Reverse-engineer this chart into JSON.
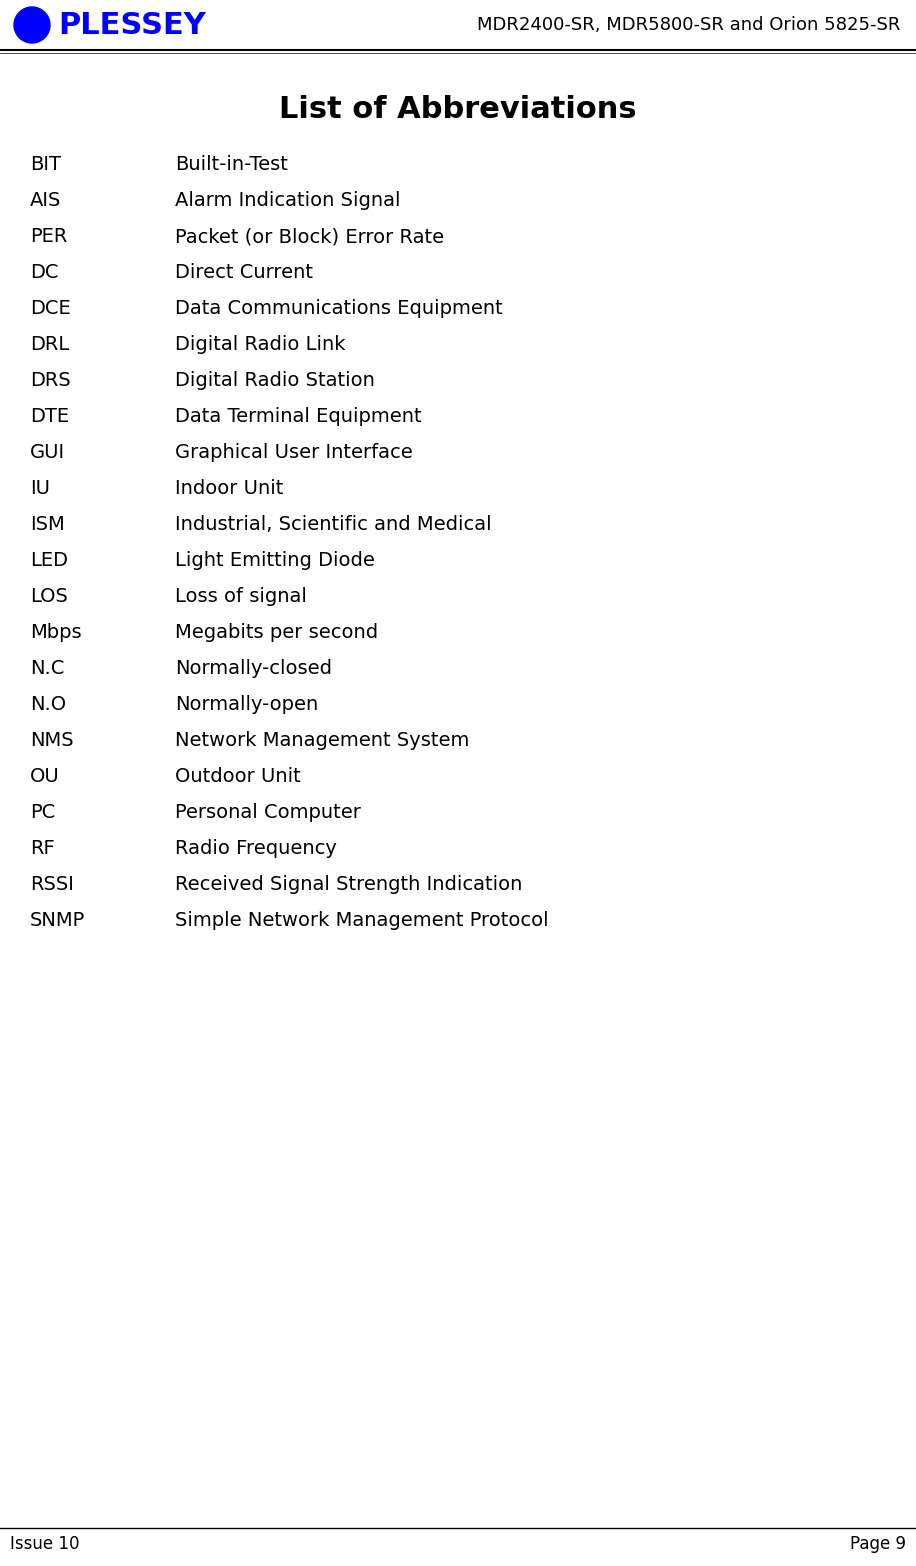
{
  "header_text": "MDR2400-SR, MDR5800-SR and Orion 5825-SR",
  "title": "List of Abbreviations",
  "footer_left": "Issue 10",
  "footer_right": "Page 9",
  "plessey_text": "PLESSEY",
  "plessey_color": "#0000FF",
  "abbreviations": [
    [
      "BIT",
      "Built-in-Test"
    ],
    [
      "AIS",
      "Alarm Indication Signal"
    ],
    [
      "PER",
      "Packet (or Block) Error Rate"
    ],
    [
      "DC",
      "Direct Current"
    ],
    [
      "DCE",
      "Data Communications Equipment"
    ],
    [
      "DRL",
      "Digital Radio Link"
    ],
    [
      "DRS",
      "Digital Radio Station"
    ],
    [
      "DTE",
      "Data Terminal Equipment"
    ],
    [
      "GUI",
      "Graphical User Interface"
    ],
    [
      "IU",
      "Indoor Unit"
    ],
    [
      "ISM",
      "Industrial, Scientific and Medical"
    ],
    [
      "LED",
      "Light Emitting Diode"
    ],
    [
      "LOS",
      "Loss of signal"
    ],
    [
      "Mbps",
      "Megabits per second"
    ],
    [
      "N.C",
      "Normally-closed"
    ],
    [
      "N.O",
      "Normally-open"
    ],
    [
      "NMS",
      "Network Management System"
    ],
    [
      "OU",
      "Outdoor Unit"
    ],
    [
      "PC",
      "Personal Computer"
    ],
    [
      "RF",
      "Radio Frequency"
    ],
    [
      "RSSI",
      "Received Signal Strength Indication"
    ],
    [
      "SNMP",
      "Simple Network Management Protocol"
    ]
  ],
  "bg_color": "#ffffff",
  "text_color": "#000000",
  "header_line_color": "#000000",
  "footer_line_color": "#000000"
}
